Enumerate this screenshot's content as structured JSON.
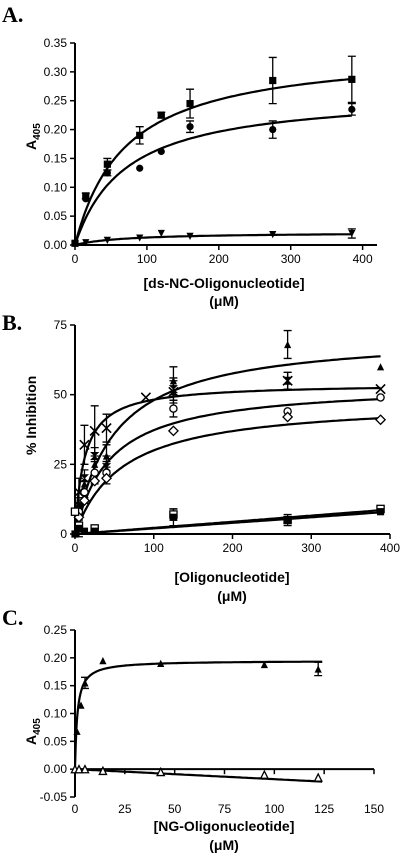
{
  "chart_data": [
    {
      "type": "scatter",
      "panel_label": "A.",
      "xlabel": "[ds-NC-Oligonucleotide]",
      "xlabel_unit": "(μM)",
      "ylabel": "A",
      "ylabel_sub": "405",
      "xlim": [
        0,
        420
      ],
      "ylim": [
        0,
        0.35
      ],
      "xticks": [
        "0",
        "100",
        "200",
        "300",
        "400"
      ],
      "yticks": [
        "0.00",
        "0.05",
        "0.10",
        "0.15",
        "0.20",
        "0.25",
        "0.30",
        "0.35"
      ],
      "xtick_values": [
        0,
        100,
        200,
        300,
        400
      ],
      "ytick_values": [
        0,
        0.05,
        0.1,
        0.15,
        0.2,
        0.25,
        0.3,
        0.35
      ],
      "grid": false,
      "series": [
        {
          "marker": "square",
          "x": [
            0,
            15,
            45,
            90,
            120,
            160,
            275,
            385
          ],
          "y": [
            0.003,
            0.085,
            0.14,
            0.19,
            0.225,
            0.245,
            0.285,
            0.287
          ],
          "err": [
            0,
            0.005,
            0.01,
            0.015,
            0.005,
            0.025,
            0.04,
            0.04
          ],
          "fit": {
            "vmax": 0.34,
            "km": 70,
            "xmax": 385
          }
        },
        {
          "marker": "circle",
          "x": [
            0,
            15,
            45,
            90,
            120,
            160,
            275,
            385
          ],
          "y": [
            0.003,
            0.08,
            0.125,
            0.133,
            0.162,
            0.205,
            0.2,
            0.235
          ],
          "err": [
            0,
            0,
            0.005,
            0,
            0,
            0.01,
            0.015,
            0.01
          ],
          "fit": {
            "vmax": 0.265,
            "km": 70,
            "xmax": 385
          }
        },
        {
          "marker": "triangle-down",
          "x": [
            0,
            15,
            45,
            90,
            120,
            160,
            275,
            385
          ],
          "y": [
            0.002,
            0.004,
            0.008,
            0.012,
            0.02,
            0.015,
            0.018,
            0.02
          ],
          "err": [
            0,
            0,
            0,
            0,
            0,
            0,
            0,
            0.008
          ],
          "fit": {
            "vmax": 0.022,
            "km": 70,
            "xmax": 385
          }
        }
      ]
    },
    {
      "type": "scatter",
      "panel_label": "B.",
      "xlabel": "[Oligonucleotide]",
      "xlabel_unit": "(μM)",
      "ylabel": "% Inhibition",
      "xlim": [
        0,
        400
      ],
      "ylim": [
        0,
        75
      ],
      "xticks": [
        "0",
        "100",
        "200",
        "300",
        "400"
      ],
      "yticks": [
        "0",
        "25",
        "50",
        "75"
      ],
      "xtick_values": [
        0,
        100,
        200,
        300,
        400
      ],
      "ytick_values": [
        0,
        25,
        50,
        75
      ],
      "grid": false,
      "series": [
        {
          "marker": "triangle-up",
          "x": [
            5,
            12,
            25,
            40,
            125,
            270,
            388
          ],
          "y": [
            10,
            18,
            25,
            28,
            55,
            68,
            60
          ],
          "err": [
            3,
            5,
            6,
            4,
            5,
            5,
            0
          ],
          "fit": {
            "vmax": 72,
            "km": 50,
            "xmax": 388
          }
        },
        {
          "marker": "x",
          "x": [
            5,
            12,
            25,
            40,
            90,
            125,
            270,
            388
          ],
          "y": [
            15,
            32,
            37,
            38,
            49,
            51,
            55,
            52
          ],
          "err": [
            5,
            7,
            9,
            5,
            0,
            4,
            3,
            0
          ],
          "fit": {
            "vmax": 54,
            "km": 12,
            "xmax": 388
          }
        },
        {
          "marker": "hourglass",
          "x": [
            5,
            12,
            25,
            40,
            125,
            270
          ],
          "y": [
            10,
            20,
            28,
            24,
            52,
            55
          ],
          "err": [
            0,
            0,
            0,
            4,
            4,
            3
          ],
          "fit": null
        },
        {
          "marker": "circle-open",
          "x": [
            5,
            12,
            25,
            40,
            125,
            270,
            388
          ],
          "y": [
            8,
            15,
            22,
            22,
            45,
            44,
            49
          ],
          "err": [
            3,
            4,
            4,
            4,
            3,
            0,
            0
          ],
          "fit": {
            "vmax": 54,
            "km": 45,
            "xmax": 388
          }
        },
        {
          "marker": "diamond",
          "x": [
            5,
            12,
            25,
            40,
            125,
            270,
            388
          ],
          "y": [
            6,
            12,
            19,
            20,
            37,
            42,
            41
          ],
          "err": [
            0,
            0,
            0,
            0,
            0,
            0,
            0
          ],
          "fit": {
            "vmax": 48,
            "km": 60,
            "xmax": 388
          }
        },
        {
          "marker": "square-open",
          "x": [
            0,
            5,
            25,
            125,
            270,
            388
          ],
          "y": [
            8,
            3,
            2,
            7,
            5,
            9
          ],
          "err": [
            0,
            4,
            0,
            2,
            2,
            0
          ],
          "fit": {
            "linear": 0.022,
            "xmax": 388
          }
        },
        {
          "marker": "square",
          "x": [
            0,
            5,
            12,
            25,
            125,
            270,
            388
          ],
          "y": [
            0,
            2,
            1,
            1,
            6,
            5,
            8
          ],
          "err": [
            0,
            0,
            0,
            0,
            3,
            0,
            0
          ],
          "fit": {
            "linear": 0.02,
            "xmax": 388
          }
        }
      ]
    },
    {
      "type": "scatter",
      "panel_label": "C.",
      "xlabel": "[NG-Oligonucleotide]",
      "xlabel_unit": "(μM)",
      "ylabel": "A",
      "ylabel_sub": "405",
      "xlim": [
        0,
        150
      ],
      "ylim": [
        -0.05,
        0.25
      ],
      "xticks": [
        "0",
        "25",
        "50",
        "75",
        "100",
        "125",
        "150"
      ],
      "yticks": [
        "-0.05",
        "0.00",
        "0.05",
        "0.10",
        "0.15",
        "0.20",
        "0.25"
      ],
      "xtick_values": [
        0,
        25,
        50,
        75,
        100,
        125,
        150
      ],
      "ytick_values": [
        -0.05,
        0,
        0.05,
        0.1,
        0.15,
        0.2,
        0.25
      ],
      "grid": false,
      "series": [
        {
          "marker": "triangle-up",
          "x": [
            1,
            3,
            5,
            14,
            43,
            95,
            122
          ],
          "y": [
            0.068,
            0.115,
            0.155,
            0.195,
            0.19,
            0.188,
            0.18
          ],
          "err": [
            0,
            0,
            0.01,
            0,
            0,
            0,
            0.012
          ],
          "fit": {
            "vmax": 0.195,
            "km": 1.2,
            "xmax": 124
          }
        },
        {
          "marker": "triangle-up-open",
          "x": [
            0,
            2,
            5,
            14,
            43,
            95,
            122
          ],
          "y": [
            0,
            0,
            0,
            -0.003,
            -0.005,
            -0.01,
            -0.015
          ],
          "err": [
            0,
            0,
            0,
            0,
            0,
            0,
            0
          ],
          "fit": {
            "linear": -0.00018,
            "xmax": 124
          }
        }
      ]
    }
  ]
}
